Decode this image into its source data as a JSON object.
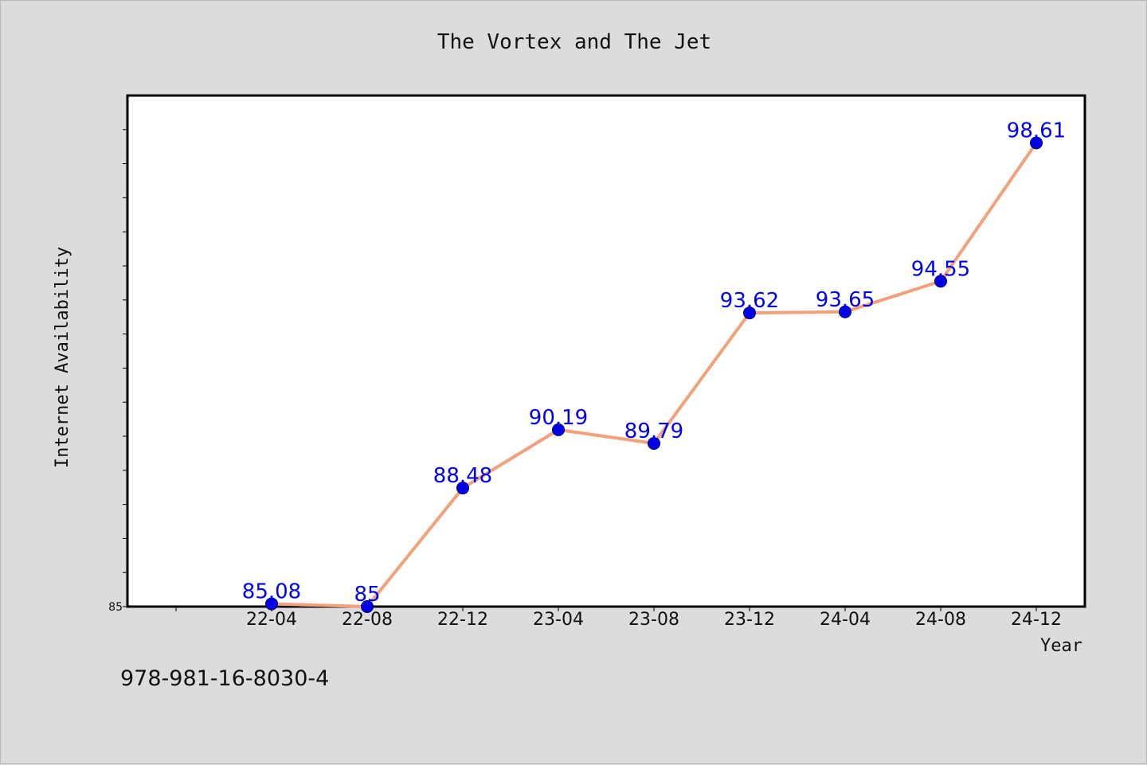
{
  "chart_data": {
    "type": "line",
    "title": "The Vortex and The Jet",
    "xlabel": "Year",
    "ylabel": "Internet Availability",
    "categories": [
      "22-04",
      "22-08",
      "22-12",
      "23-04",
      "23-08",
      "23-12",
      "24-04",
      "24-08",
      "24-12"
    ],
    "series": [
      {
        "values": [
          85.08,
          85,
          88.48,
          90.19,
          89.79,
          93.62,
          93.65,
          94.55,
          98.61
        ],
        "data_labels": [
          "85.08",
          "85",
          "88.48",
          "90.19",
          "89.79",
          "93.62",
          "93.65",
          "94.55",
          "98.61"
        ],
        "line_color": "#f4a07a",
        "marker_color": "#0000ee",
        "label_color": "#0000ee"
      }
    ],
    "ylim": [
      85,
      100
    ],
    "yticks": [
      {
        "value": 85,
        "label": "85"
      },
      {
        "value": 86,
        "label": ""
      },
      {
        "value": 87,
        "label": ""
      },
      {
        "value": 88,
        "label": ""
      },
      {
        "value": 89,
        "label": ""
      },
      {
        "value": 90,
        "label": ""
      },
      {
        "value": 91,
        "label": ""
      },
      {
        "value": 92,
        "label": ""
      },
      {
        "value": 93,
        "label": ""
      },
      {
        "value": 94,
        "label": ""
      },
      {
        "value": 95,
        "label": ""
      },
      {
        "value": 96,
        "label": ""
      },
      {
        "value": 97,
        "label": ""
      },
      {
        "value": 98,
        "label": ""
      },
      {
        "value": 99,
        "label": ""
      }
    ],
    "grid": false,
    "legend": "none"
  },
  "footnote": "978-981-16-8030-4",
  "colors": {
    "background": "#dcdcdc",
    "plot_background": "#ffffff",
    "axis": "#000000"
  }
}
